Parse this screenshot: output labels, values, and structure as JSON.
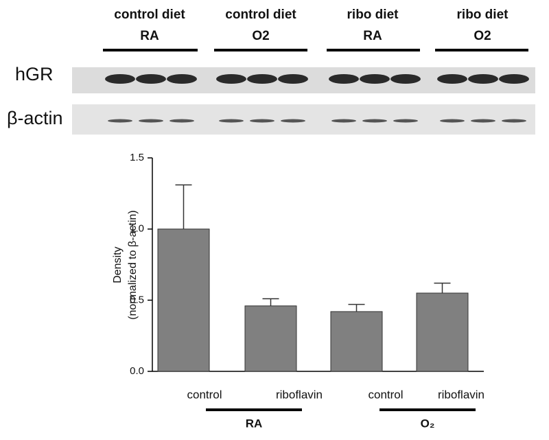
{
  "blot": {
    "groups": [
      {
        "line1": "control diet",
        "line2": "RA"
      },
      {
        "line1": "control diet",
        "line2": "O2"
      },
      {
        "line1": "ribo diet",
        "line2": "RA"
      },
      {
        "line1": "ribo diet",
        "line2": "O2"
      }
    ],
    "rows": [
      "hGR",
      "β-actin"
    ]
  },
  "chart_data": {
    "type": "bar",
    "ylabel": [
      "Density",
      "(normalized to β-actin)"
    ],
    "categories": [
      "control",
      "riboflavin",
      "control",
      "riboflavin"
    ],
    "values": [
      1.0,
      0.46,
      0.42,
      0.55
    ],
    "errors": [
      0.31,
      0.05,
      0.05,
      0.07
    ],
    "groups": [
      "RA",
      "O₂"
    ],
    "color": "#808080",
    "ylim": [
      0,
      1.5
    ],
    "yticks": [
      {
        "value": 0,
        "label": "0.0"
      },
      {
        "value": 0.5,
        "label": "0.5"
      },
      {
        "value": 1,
        "label": "1.0"
      },
      {
        "value": 1.5,
        "label": "1.5"
      }
    ]
  }
}
